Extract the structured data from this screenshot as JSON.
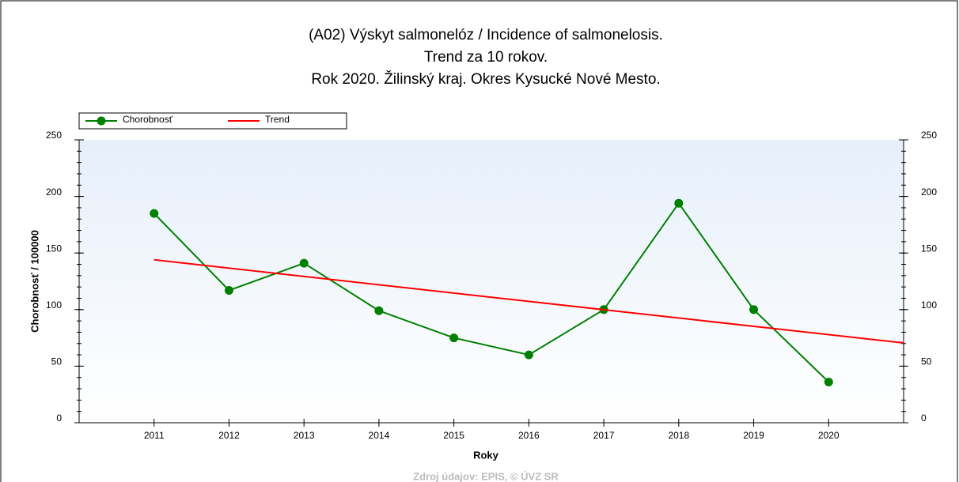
{
  "chart_data": {
    "type": "line",
    "title": [
      "(A02) Výskyt salmonelóz / Incidence of salmonelosis.",
      "Trend za 10 rokov.",
      "Rok 2020. Žilinský kraj. Okres Kysucké Nové Mesto."
    ],
    "x": [
      2011,
      2012,
      2013,
      2014,
      2015,
      2016,
      2017,
      2018,
      2019,
      2020
    ],
    "series": [
      {
        "name": "Chorobnosť",
        "color": "#008000",
        "values": [
          185,
          117,
          141,
          99,
          75,
          60,
          100,
          194,
          100,
          36
        ]
      },
      {
        "name": "Trend",
        "color": "#ff0000",
        "x": [
          2011,
          2021
        ],
        "values": [
          144,
          70.5
        ]
      }
    ],
    "xlim": [
      2010,
      2021
    ],
    "xticks": [
      2011,
      2012,
      2013,
      2014,
      2015,
      2016,
      2017,
      2018,
      2019,
      2020
    ],
    "ylim": [
      0,
      250
    ],
    "yticks": [
      0,
      50,
      100,
      150,
      200,
      250
    ],
    "y2lim": [
      0,
      250
    ],
    "y2ticks": [
      0,
      50,
      100,
      150,
      200,
      250
    ],
    "xlabel": "Roky",
    "ylabel": "Chorobnosť / 100000",
    "source": "Zdroj údajov: EPIS, © ÚVZ SR",
    "legend": "top-left"
  }
}
